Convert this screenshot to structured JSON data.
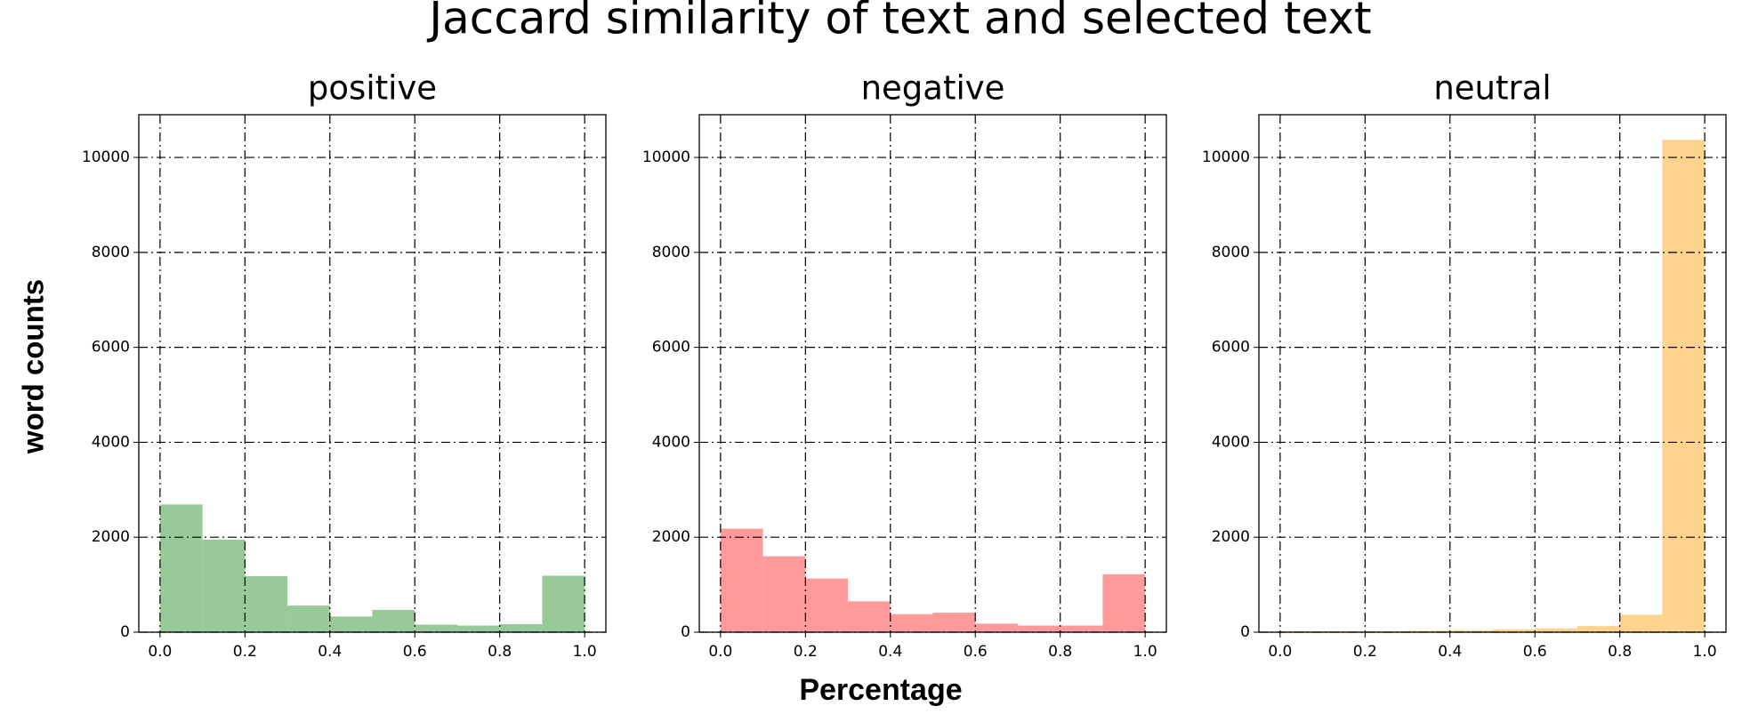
{
  "title": "Jaccard similarity of text and selected text",
  "xlabel": "Percentage",
  "ylabel": "word counts",
  "chart_data": [
    {
      "type": "histogram",
      "title": "positive",
      "color": "#98c998",
      "bins": [
        0.0,
        0.1,
        0.2,
        0.3,
        0.4,
        0.5,
        0.6,
        0.7,
        0.8,
        0.9,
        1.0
      ],
      "values": [
        2690,
        1950,
        1180,
        560,
        330,
        470,
        160,
        140,
        170,
        1190
      ],
      "xlim": [
        -0.05,
        1.05
      ],
      "ylim": [
        0,
        10900
      ],
      "xticks": [
        {
          "value": 0,
          "label": "0.0"
        },
        0.2,
        0.4,
        0.6,
        0.8,
        {
          "value": 1,
          "label": "1.0"
        }
      ],
      "yticks": [
        0,
        2000,
        4000,
        6000,
        8000,
        10000
      ],
      "grid": true
    },
    {
      "type": "histogram",
      "title": "negative",
      "color": "#ff9a9a",
      "bins": [
        0.0,
        0.1,
        0.2,
        0.3,
        0.4,
        0.5,
        0.6,
        0.7,
        0.8,
        0.9,
        1.0
      ],
      "values": [
        2180,
        1600,
        1130,
        650,
        380,
        410,
        180,
        140,
        140,
        1220
      ],
      "xlim": [
        -0.05,
        1.05
      ],
      "ylim": [
        0,
        10900
      ],
      "xticks": [
        {
          "value": 0,
          "label": "0.0"
        },
        0.2,
        0.4,
        0.6,
        0.8,
        {
          "value": 1,
          "label": "1.0"
        }
      ],
      "yticks": [
        0,
        2000,
        4000,
        6000,
        8000,
        10000
      ],
      "grid": true
    },
    {
      "type": "histogram",
      "title": "neutral",
      "color": "#fdd38e",
      "bins": [
        0.0,
        0.1,
        0.2,
        0.3,
        0.4,
        0.5,
        0.6,
        0.7,
        0.8,
        0.9,
        1.0
      ],
      "values": [
        20,
        20,
        20,
        30,
        40,
        60,
        80,
        130,
        370,
        10370
      ],
      "xlim": [
        -0.05,
        1.05
      ],
      "ylim": [
        0,
        10900
      ],
      "xticks": [
        {
          "value": 0,
          "label": "0.0"
        },
        0.2,
        0.4,
        0.6,
        0.8,
        {
          "value": 1,
          "label": "1.0"
        }
      ],
      "yticks": [
        0,
        2000,
        4000,
        6000,
        8000,
        10000
      ],
      "grid": true
    }
  ]
}
